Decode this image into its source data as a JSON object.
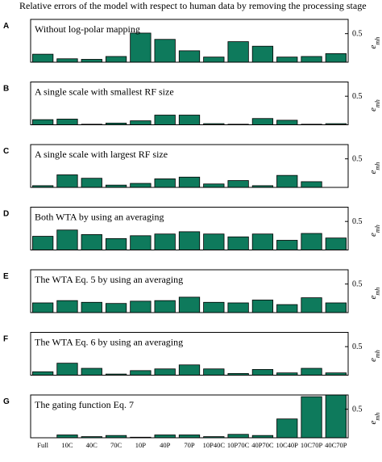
{
  "title": "Relative errors  of the model  with respect to human data by removing  the processing stage",
  "ylabel_main": "e",
  "ylabel_sub": "mh",
  "ytick_label": "0.5",
  "colors": {
    "bar": "#0e7a5c",
    "edge": "#000000"
  },
  "chart_data": {
    "type": "bar",
    "categories": [
      "Full",
      "10C",
      "40C",
      "70C",
      "10P",
      "40P",
      "70P",
      "10P40C",
      "10P70C",
      "40P70C",
      "10C40P",
      "10C70P",
      "40C70P"
    ],
    "ylim": [
      0,
      0.75
    ],
    "yticks": [
      0.5
    ],
    "panels": [
      {
        "letter": "A",
        "label": "Without log-polar mapping",
        "values": [
          0.14,
          0.06,
          0.05,
          0.1,
          0.51,
          0.4,
          0.2,
          0.09,
          0.36,
          0.28,
          0.09,
          0.1,
          0.15
        ]
      },
      {
        "letter": "B",
        "label": "A single scale with smallest RF size",
        "values": [
          0.09,
          0.1,
          0.01,
          0.03,
          0.07,
          0.17,
          0.17,
          0.02,
          0.01,
          0.11,
          0.08,
          0.01,
          0.02
        ]
      },
      {
        "letter": "C",
        "label": "A single scale with largest RF size",
        "values": [
          0.03,
          0.22,
          0.16,
          0.04,
          0.07,
          0.15,
          0.18,
          0.06,
          0.12,
          0.03,
          0.21,
          0.1,
          0.0
        ]
      },
      {
        "letter": "D",
        "label": "Both WTA by using  an averaging",
        "values": [
          0.24,
          0.35,
          0.27,
          0.2,
          0.25,
          0.28,
          0.32,
          0.28,
          0.23,
          0.28,
          0.17,
          0.29,
          0.21
        ]
      },
      {
        "letter": "E",
        "label": "The WTA  Eq. 5  by using  an averaging",
        "values": [
          0.17,
          0.21,
          0.18,
          0.16,
          0.2,
          0.21,
          0.27,
          0.18,
          0.17,
          0.22,
          0.14,
          0.26,
          0.17
        ]
      },
      {
        "letter": "F",
        "label": "The WTA  Eq. 6  by using  an averaging",
        "values": [
          0.06,
          0.21,
          0.12,
          0.02,
          0.08,
          0.11,
          0.18,
          0.11,
          0.03,
          0.1,
          0.04,
          0.12,
          0.04
        ]
      },
      {
        "letter": "G",
        "label": "The gating function    Eq. 7",
        "values": [
          0.0,
          0.05,
          0.02,
          0.04,
          0.01,
          0.05,
          0.05,
          0.02,
          0.06,
          0.04,
          0.33,
          0.72,
          0.75
        ]
      }
    ]
  }
}
